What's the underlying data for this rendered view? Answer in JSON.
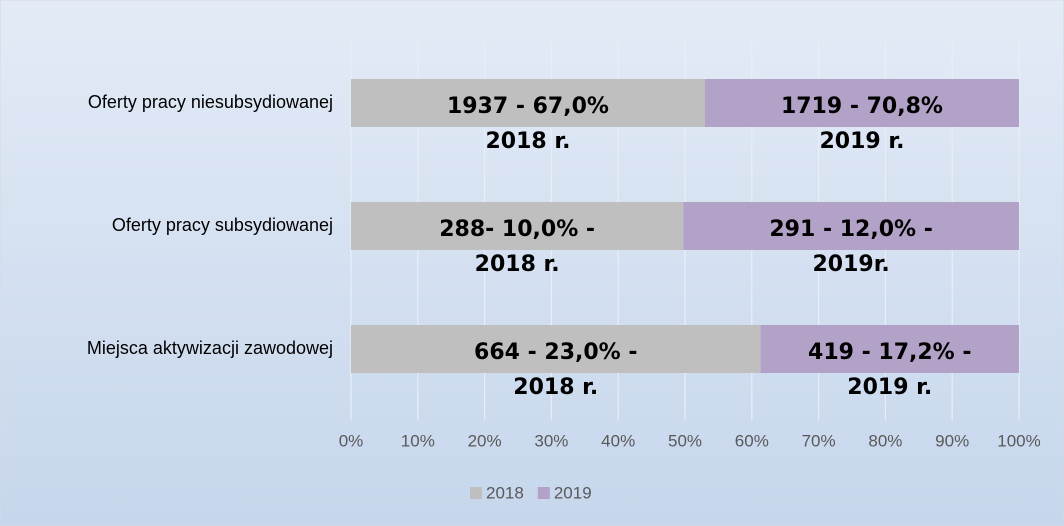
{
  "chart_data": {
    "type": "bar",
    "orientation": "horizontal",
    "stacked": "percent",
    "categories": [
      "Oferty pracy niesubsydiowanej",
      "Oferty pracy subsydiowanej",
      "Miejsca aktywizacji zawodowej"
    ],
    "series": [
      {
        "name": "2018",
        "color": "#bfbfbf",
        "values": [
          1937,
          288,
          664
        ],
        "value_labels": [
          [
            "1937 - 67,0%",
            "2018 r."
          ],
          [
            "288- 10,0% -",
            "2018 r."
          ],
          [
            "664 - 23,0% -",
            "2018 r."
          ]
        ]
      },
      {
        "name": "2019",
        "color": "#b3a2c7",
        "values": [
          1719,
          291,
          419
        ],
        "value_labels": [
          [
            "1719 - 70,8%",
            "2019 r."
          ],
          [
            "291 - 12,0% -",
            "2019r."
          ],
          [
            "419 - 17,2% -",
            "2019 r."
          ]
        ]
      }
    ],
    "xlim": [
      0,
      100
    ],
    "xticks": [
      {
        "value": 0,
        "label": "0%"
      },
      {
        "value": 10,
        "label": "10%"
      },
      {
        "value": 20,
        "label": "20%"
      },
      {
        "value": 30,
        "label": "30%"
      },
      {
        "value": 40,
        "label": "40%"
      },
      {
        "value": 50,
        "label": "50%"
      },
      {
        "value": 60,
        "label": "60%"
      },
      {
        "value": 70,
        "label": "70%"
      },
      {
        "value": 80,
        "label": "80%"
      },
      {
        "value": 90,
        "label": "90%"
      },
      {
        "value": 100,
        "label": "100%"
      }
    ],
    "grid": true,
    "legend": "bottom"
  }
}
